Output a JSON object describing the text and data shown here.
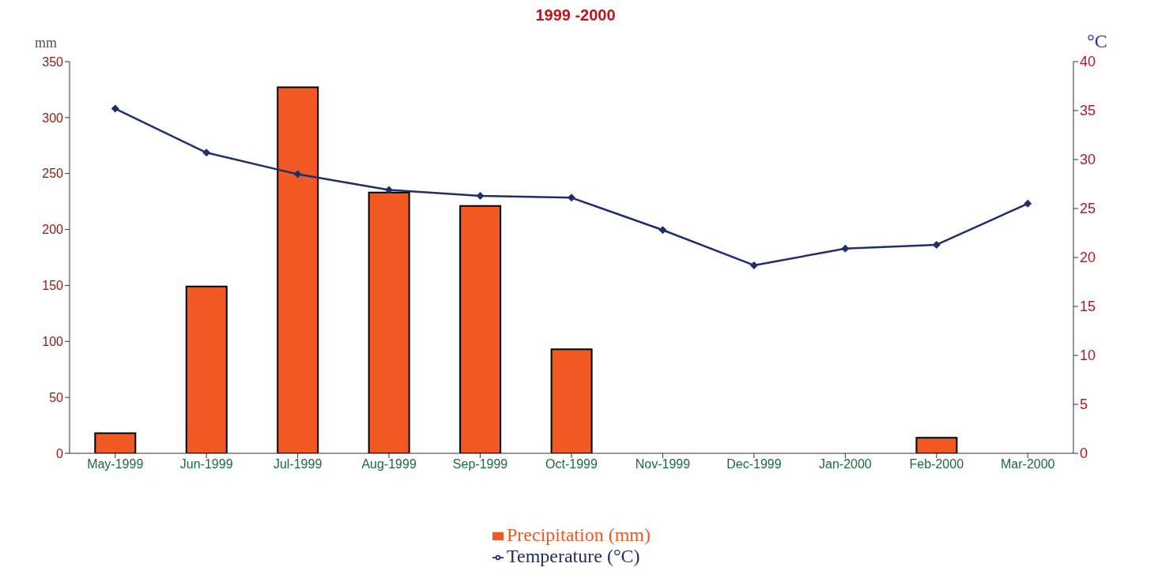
{
  "chart_data": {
    "type": "bar",
    "title": "1999 -2000",
    "ylabel": "mm",
    "y2label": "°C",
    "categories": [
      "May-1999",
      "Jun-1999",
      "Jul-1999",
      "Aug-1999",
      "Sep-1999",
      "Oct-1999",
      "Nov-1999",
      "Dec-1999",
      "Jan-2000",
      "Feb-2000",
      "Mar-2000"
    ],
    "series": [
      {
        "name": "Precipitation (mm)",
        "color": "#f05a22",
        "values": [
          18,
          149,
          327,
          233,
          221,
          93,
          0,
          0,
          0,
          14,
          0
        ]
      },
      {
        "name": "Temperature (°C)",
        "type": "line",
        "axis": "y2",
        "color": "#1f2f6e",
        "marker": "diamond",
        "values": [
          35.2,
          30.7,
          28.5,
          26.9,
          26.3,
          26.1,
          22.8,
          19.2,
          20.9,
          21.3,
          25.5
        ]
      }
    ],
    "ylim": [
      0,
      350
    ],
    "yticks": [
      0,
      50,
      100,
      150,
      200,
      250,
      300,
      350
    ],
    "y2lim": [
      0,
      40
    ],
    "y2ticks": [
      0,
      5,
      10,
      15,
      20,
      25,
      30,
      35,
      40
    ],
    "grid": false,
    "legend": "bottom"
  }
}
